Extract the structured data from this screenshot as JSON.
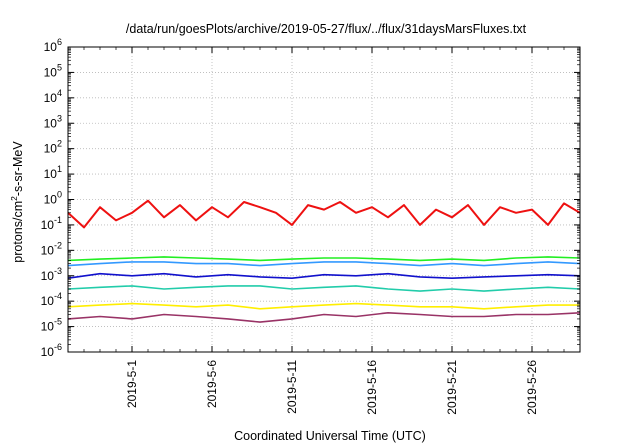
{
  "chart_data": {
    "type": "line",
    "title": "/data/run/goesPlots/archive/2019-05-27/flux/../flux/31daysMarsFluxes.txt",
    "xlabel": "Coordinated Universal Time (UTC)",
    "ylabel_prefix": "protons/cm",
    "ylabel_sup": "2",
    "ylabel_suffix": "-s-sr-MeV",
    "y_scale": "log",
    "ylim": [
      1e-06,
      1000000.0
    ],
    "xlim": [
      "2019-04-27",
      "2019-05-29"
    ],
    "grid": true,
    "y_ticks": [
      {
        "base": "10",
        "exp": "-6",
        "value": 1e-06
      },
      {
        "base": "10",
        "exp": "-5",
        "value": 1e-05
      },
      {
        "base": "10",
        "exp": "-4",
        "value": 0.0001
      },
      {
        "base": "10",
        "exp": "-3",
        "value": 0.001
      },
      {
        "base": "10",
        "exp": "-2",
        "value": 0.01
      },
      {
        "base": "10",
        "exp": "-1",
        "value": 0.1
      },
      {
        "base": "10",
        "exp": "0",
        "value": 1
      },
      {
        "base": "10",
        "exp": "1",
        "value": 10
      },
      {
        "base": "10",
        "exp": "2",
        "value": 100
      },
      {
        "base": "10",
        "exp": "3",
        "value": 1000
      },
      {
        "base": "10",
        "exp": "4",
        "value": 10000
      },
      {
        "base": "10",
        "exp": "5",
        "value": 100000
      },
      {
        "base": "10",
        "exp": "6",
        "value": 1000000
      }
    ],
    "x_ticks": [
      {
        "label": "2019-5-1",
        "date": "2019-05-01"
      },
      {
        "label": "2019-5-6",
        "date": "2019-05-06"
      },
      {
        "label": "2019-5-11",
        "date": "2019-05-11"
      },
      {
        "label": "2019-5-16",
        "date": "2019-05-16"
      },
      {
        "label": "2019-5-21",
        "date": "2019-05-21"
      },
      {
        "label": "2019-5-26",
        "date": "2019-05-26"
      }
    ],
    "series": [
      {
        "color": "#ee1111",
        "points": [
          [
            "2019-04-27",
            0.3
          ],
          [
            "2019-04-28",
            0.08
          ],
          [
            "2019-04-29",
            0.5
          ],
          [
            "2019-04-30",
            0.15
          ],
          [
            "2019-05-01",
            0.3
          ],
          [
            "2019-05-02",
            0.9
          ],
          [
            "2019-05-03",
            0.2
          ],
          [
            "2019-05-04",
            0.6
          ],
          [
            "2019-05-05",
            0.15
          ],
          [
            "2019-05-06",
            0.5
          ],
          [
            "2019-05-07",
            0.2
          ],
          [
            "2019-05-08",
            0.8
          ],
          [
            "2019-05-09",
            0.5
          ],
          [
            "2019-05-10",
            0.3
          ],
          [
            "2019-05-11",
            0.1
          ],
          [
            "2019-05-12",
            0.6
          ],
          [
            "2019-05-13",
            0.4
          ],
          [
            "2019-05-14",
            0.8
          ],
          [
            "2019-05-15",
            0.3
          ],
          [
            "2019-05-16",
            0.5
          ],
          [
            "2019-05-17",
            0.2
          ],
          [
            "2019-05-18",
            0.6
          ],
          [
            "2019-05-19",
            0.1
          ],
          [
            "2019-05-20",
            0.4
          ],
          [
            "2019-05-21",
            0.2
          ],
          [
            "2019-05-22",
            0.6
          ],
          [
            "2019-05-23",
            0.1
          ],
          [
            "2019-05-24",
            0.5
          ],
          [
            "2019-05-25",
            0.3
          ],
          [
            "2019-05-26",
            0.4
          ],
          [
            "2019-05-27",
            0.1
          ],
          [
            "2019-05-28",
            0.7
          ],
          [
            "2019-05-29",
            0.3
          ]
        ]
      },
      {
        "color": "#22ee22",
        "points": [
          [
            "2019-04-27",
            0.004
          ],
          [
            "2019-04-29",
            0.0045
          ],
          [
            "2019-05-01",
            0.005
          ],
          [
            "2019-05-03",
            0.0055
          ],
          [
            "2019-05-05",
            0.005
          ],
          [
            "2019-05-07",
            0.0045
          ],
          [
            "2019-05-09",
            0.004
          ],
          [
            "2019-05-11",
            0.0045
          ],
          [
            "2019-05-13",
            0.005
          ],
          [
            "2019-05-15",
            0.005
          ],
          [
            "2019-05-17",
            0.0045
          ],
          [
            "2019-05-19",
            0.004
          ],
          [
            "2019-05-21",
            0.0045
          ],
          [
            "2019-05-23",
            0.004
          ],
          [
            "2019-05-25",
            0.005
          ],
          [
            "2019-05-27",
            0.0055
          ],
          [
            "2019-05-29",
            0.005
          ]
        ]
      },
      {
        "color": "#3399ff",
        "points": [
          [
            "2019-04-27",
            0.0025
          ],
          [
            "2019-04-29",
            0.003
          ],
          [
            "2019-05-01",
            0.0035
          ],
          [
            "2019-05-03",
            0.0035
          ],
          [
            "2019-05-05",
            0.003
          ],
          [
            "2019-05-07",
            0.003
          ],
          [
            "2019-05-09",
            0.0025
          ],
          [
            "2019-05-11",
            0.003
          ],
          [
            "2019-05-13",
            0.0035
          ],
          [
            "2019-05-15",
            0.0035
          ],
          [
            "2019-05-17",
            0.003
          ],
          [
            "2019-05-19",
            0.0025
          ],
          [
            "2019-05-21",
            0.003
          ],
          [
            "2019-05-23",
            0.0025
          ],
          [
            "2019-05-25",
            0.003
          ],
          [
            "2019-05-27",
            0.0035
          ],
          [
            "2019-05-29",
            0.003
          ]
        ]
      },
      {
        "color": "#1111cc",
        "points": [
          [
            "2019-04-27",
            0.0008
          ],
          [
            "2019-04-29",
            0.0012
          ],
          [
            "2019-05-01",
            0.001
          ],
          [
            "2019-05-03",
            0.0012
          ],
          [
            "2019-05-05",
            0.0009
          ],
          [
            "2019-05-07",
            0.0011
          ],
          [
            "2019-05-09",
            0.0009
          ],
          [
            "2019-05-11",
            0.0008
          ],
          [
            "2019-05-13",
            0.0011
          ],
          [
            "2019-05-15",
            0.001
          ],
          [
            "2019-05-17",
            0.0012
          ],
          [
            "2019-05-19",
            0.0009
          ],
          [
            "2019-05-21",
            0.0008
          ],
          [
            "2019-05-23",
            0.0009
          ],
          [
            "2019-05-25",
            0.001
          ],
          [
            "2019-05-27",
            0.0011
          ],
          [
            "2019-05-29",
            0.001
          ]
        ]
      },
      {
        "color": "#22ccaa",
        "points": [
          [
            "2019-04-27",
            0.0003
          ],
          [
            "2019-04-29",
            0.00035
          ],
          [
            "2019-05-01",
            0.0004
          ],
          [
            "2019-05-03",
            0.0003
          ],
          [
            "2019-05-05",
            0.00035
          ],
          [
            "2019-05-07",
            0.0004
          ],
          [
            "2019-05-09",
            0.0004
          ],
          [
            "2019-05-11",
            0.0003
          ],
          [
            "2019-05-13",
            0.00035
          ],
          [
            "2019-05-15",
            0.0004
          ],
          [
            "2019-05-17",
            0.0003
          ],
          [
            "2019-05-19",
            0.00025
          ],
          [
            "2019-05-21",
            0.0003
          ],
          [
            "2019-05-23",
            0.00025
          ],
          [
            "2019-05-25",
            0.0003
          ],
          [
            "2019-05-27",
            0.00035
          ],
          [
            "2019-05-29",
            0.0003
          ]
        ]
      },
      {
        "color": "#ffee00",
        "points": [
          [
            "2019-04-27",
            6e-05
          ],
          [
            "2019-04-29",
            7e-05
          ],
          [
            "2019-05-01",
            8e-05
          ],
          [
            "2019-05-03",
            7e-05
          ],
          [
            "2019-05-05",
            6e-05
          ],
          [
            "2019-05-07",
            7e-05
          ],
          [
            "2019-05-09",
            5e-05
          ],
          [
            "2019-05-11",
            6e-05
          ],
          [
            "2019-05-13",
            7e-05
          ],
          [
            "2019-05-15",
            8e-05
          ],
          [
            "2019-05-17",
            7e-05
          ],
          [
            "2019-05-19",
            6e-05
          ],
          [
            "2019-05-21",
            6e-05
          ],
          [
            "2019-05-23",
            5e-05
          ],
          [
            "2019-05-25",
            6e-05
          ],
          [
            "2019-05-27",
            7e-05
          ],
          [
            "2019-05-29",
            7e-05
          ]
        ]
      },
      {
        "color": "#993366",
        "points": [
          [
            "2019-04-27",
            2e-05
          ],
          [
            "2019-04-29",
            2.5e-05
          ],
          [
            "2019-05-01",
            2e-05
          ],
          [
            "2019-05-03",
            3e-05
          ],
          [
            "2019-05-05",
            2.5e-05
          ],
          [
            "2019-05-07",
            2e-05
          ],
          [
            "2019-05-09",
            1.5e-05
          ],
          [
            "2019-05-11",
            2e-05
          ],
          [
            "2019-05-13",
            3e-05
          ],
          [
            "2019-05-15",
            2.5e-05
          ],
          [
            "2019-05-17",
            3.5e-05
          ],
          [
            "2019-05-19",
            3e-05
          ],
          [
            "2019-05-21",
            2.5e-05
          ],
          [
            "2019-05-23",
            2.5e-05
          ],
          [
            "2019-05-25",
            3e-05
          ],
          [
            "2019-05-27",
            3e-05
          ],
          [
            "2019-05-29",
            3.5e-05
          ]
        ]
      }
    ]
  }
}
